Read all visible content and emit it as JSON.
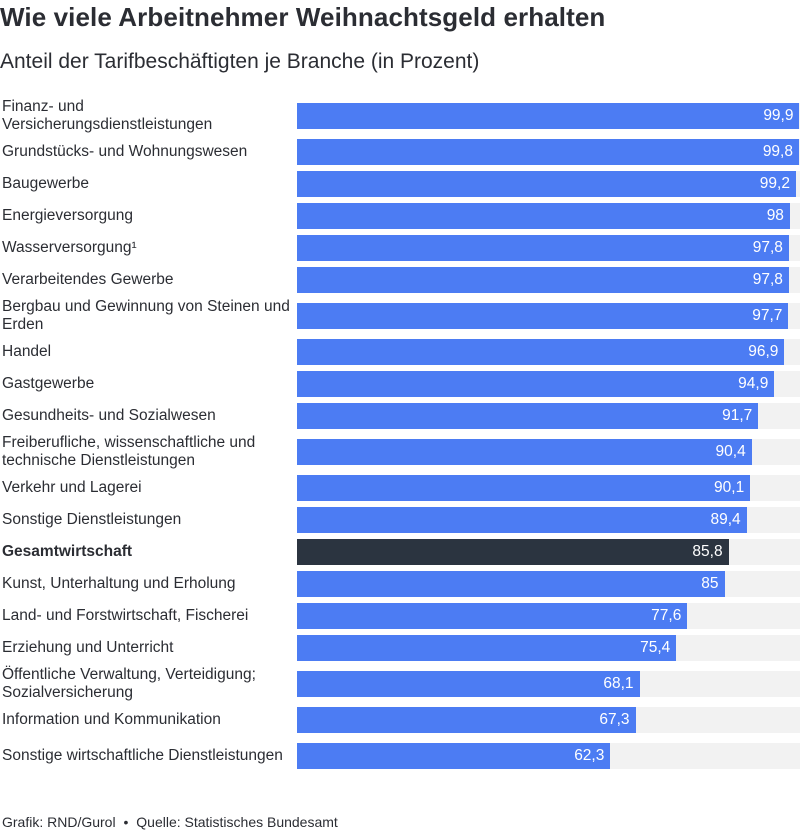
{
  "title": "Wie viele Arbeitnehmer Weihnachtsgeld erhalten",
  "subtitle": "Anteil der Tarifbeschäftigten je Branche (in Prozent)",
  "colors": {
    "bar": "#4c7cf3",
    "highlight": "#2b3440",
    "track": "#f2f2f2"
  },
  "chart_data": {
    "type": "bar",
    "orientation": "horizontal",
    "xlim": [
      0,
      100
    ],
    "grid": false,
    "categories": [
      "Finanz- und Versicherungsdienstleistungen",
      "Grundstücks- und Wohnungswesen",
      "Baugewerbe",
      "Energieversorgung",
      "Wasserversorgung¹",
      "Verarbeitendes Gewerbe",
      "Bergbau und Gewinnung von Steinen und Erden",
      "Handel",
      "Gastgewerbe",
      "Gesundheits- und Sozialwesen",
      "Freiberufliche, wissenschaftliche und technische Dienstleistungen",
      "Verkehr und Lagerei",
      "Sonstige Dienstleistungen",
      "Gesamtwirtschaft",
      "Kunst, Unterhaltung und Erholung",
      "Land- und Forstwirtschaft, Fischerei",
      "Erziehung und Unterricht",
      "Öffentliche Verwaltung, Verteidigung; Sozialversicherung",
      "Information und Kommunikation",
      "Sonstige wirtschaftliche Dienstleistungen"
    ],
    "values": [
      99.9,
      99.8,
      99.2,
      98,
      97.8,
      97.8,
      97.7,
      96.9,
      94.9,
      91.7,
      90.4,
      90.1,
      89.4,
      85.8,
      85,
      77.6,
      75.4,
      68.1,
      67.3,
      62.3
    ],
    "value_labels": [
      "99,9",
      "99,8",
      "99,2",
      "98",
      "97,8",
      "97,8",
      "97,7",
      "96,9",
      "94,9",
      "91,7",
      "90,4",
      "90,1",
      "89,4",
      "85,8",
      "85",
      "77,6",
      "75,4",
      "68,1",
      "67,3",
      "62,3"
    ],
    "highlight": "Gesamtwirtschaft"
  },
  "footer": {
    "credit": "Grafik: RND/Gurol",
    "separator": "•",
    "source": "Quelle: Statistisches Bundesamt"
  }
}
